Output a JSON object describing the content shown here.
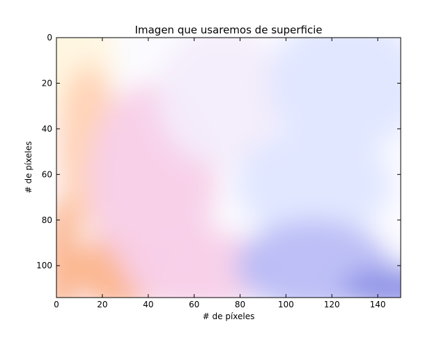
{
  "chart_data": {
    "type": "heatmap",
    "title": "Imagen que usaremos de superficie",
    "xlabel": "# de píxeles",
    "ylabel": "# de píxeles",
    "xlim": [
      0,
      150
    ],
    "ylim": [
      114,
      0
    ],
    "x_ticks": [
      0,
      20,
      40,
      60,
      80,
      100,
      120,
      140
    ],
    "y_ticks": [
      0,
      20,
      40,
      60,
      80,
      100
    ],
    "grid": false,
    "colors": {
      "light_yellow": "#fff6df",
      "peach": "#ffd2b4",
      "orange": "#fbb48c",
      "pink": "#f8cfe8",
      "lavender": "#f3ecfb",
      "pale_white": "#fbfbff",
      "light_blue": "#dfe6ff",
      "periwinkle": "#b9bcf6",
      "blue": "#8f93e6"
    }
  }
}
